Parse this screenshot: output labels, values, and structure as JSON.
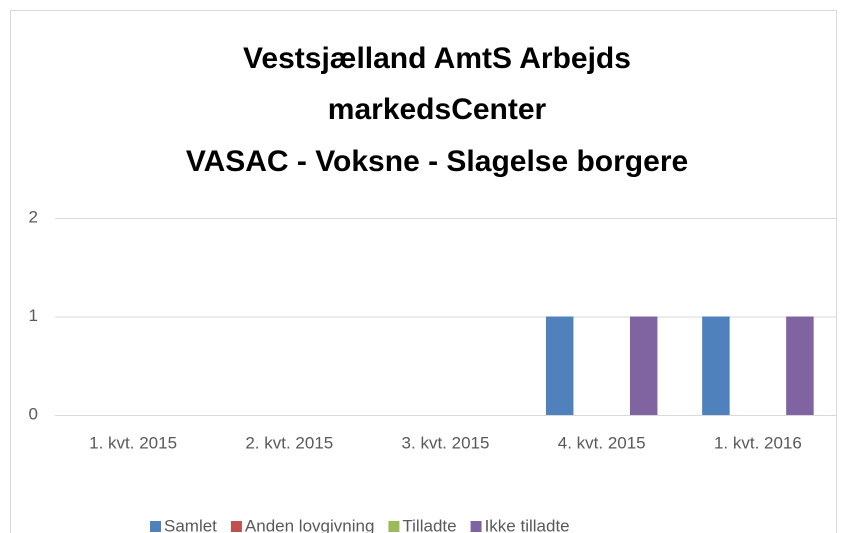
{
  "chart_data": {
    "type": "bar",
    "title": [
      "Vestsjælland AmtS Arbejds",
      "markedsCenter",
      "VASAC - Voksne - Slagelse borgere"
    ],
    "categories": [
      "1. kvt. 2015",
      "2. kvt. 2015",
      "3. kvt. 2015",
      "4. kvt. 2015",
      "1. kvt. 2016"
    ],
    "series": [
      {
        "name": "Samlet",
        "color": "#4f81bd",
        "values": [
          0,
          0,
          0,
          1,
          1
        ]
      },
      {
        "name": "Anden lovgivning",
        "color": "#c0504d",
        "values": [
          0,
          0,
          0,
          0,
          0
        ]
      },
      {
        "name": "Tilladte",
        "color": "#9bbb59",
        "values": [
          0,
          0,
          0,
          0,
          0
        ]
      },
      {
        "name": "Ikke tilladte",
        "color": "#8064a2",
        "values": [
          0,
          0,
          0,
          1,
          1
        ]
      }
    ],
    "ylim": [
      0,
      2
    ],
    "yticks": [
      0,
      1,
      2
    ],
    "grid": true,
    "legend": "bottom"
  }
}
